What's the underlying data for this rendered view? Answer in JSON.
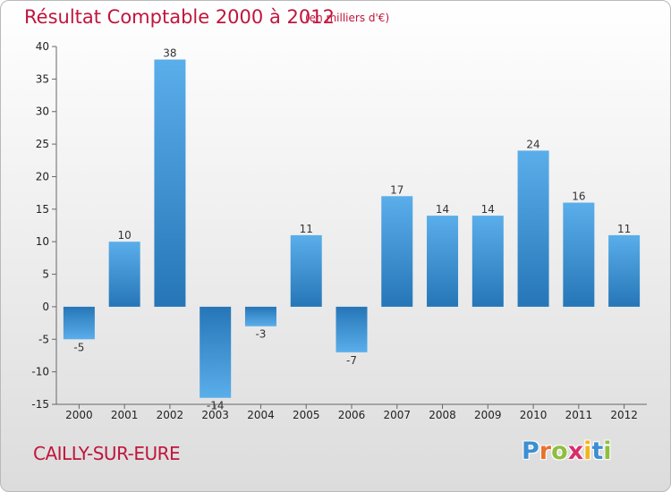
{
  "header": {
    "title": "Résultat Comptable 2000 à 2012",
    "subtitle": "(en milliers d'€)"
  },
  "footer": {
    "place": "CAILLY-SUR-EURE",
    "logo_letters": [
      "P",
      "r",
      "o",
      "x",
      "i",
      "t",
      "i"
    ],
    "logo_colors": [
      "#3d8fd1",
      "#e8732a",
      "#8fbe3f",
      "#d82f6a",
      "#f2b51c",
      "#3d8fd1",
      "#8fbe3f"
    ]
  },
  "colors": {
    "title": "#c0153c",
    "bar_light": "#5aaeea",
    "bar_dark": "#2676b7",
    "axis": "#666666",
    "grid": "#cccccc"
  },
  "chart_data": {
    "type": "bar",
    "title": "Résultat Comptable 2000 à 2012",
    "subtitle": "(en milliers d'€)",
    "categories": [
      "2000",
      "2001",
      "2002",
      "2003",
      "2004",
      "2005",
      "2006",
      "2007",
      "2008",
      "2009",
      "2010",
      "2011",
      "2012"
    ],
    "values": [
      -5,
      10,
      38,
      -14,
      -3,
      11,
      -7,
      17,
      14,
      14,
      24,
      16,
      11
    ],
    "xlabel": "",
    "ylabel": "",
    "ylim": [
      -15,
      40
    ],
    "yticks": [
      -15,
      -10,
      -5,
      0,
      5,
      10,
      15,
      20,
      25,
      30,
      35,
      40
    ],
    "ytick_labels": [
      "-15",
      "-10",
      "-5",
      "0",
      "5",
      "10",
      "15",
      "20",
      "25",
      "30",
      "35",
      "40"
    ],
    "grid": false,
    "legend": "none"
  }
}
